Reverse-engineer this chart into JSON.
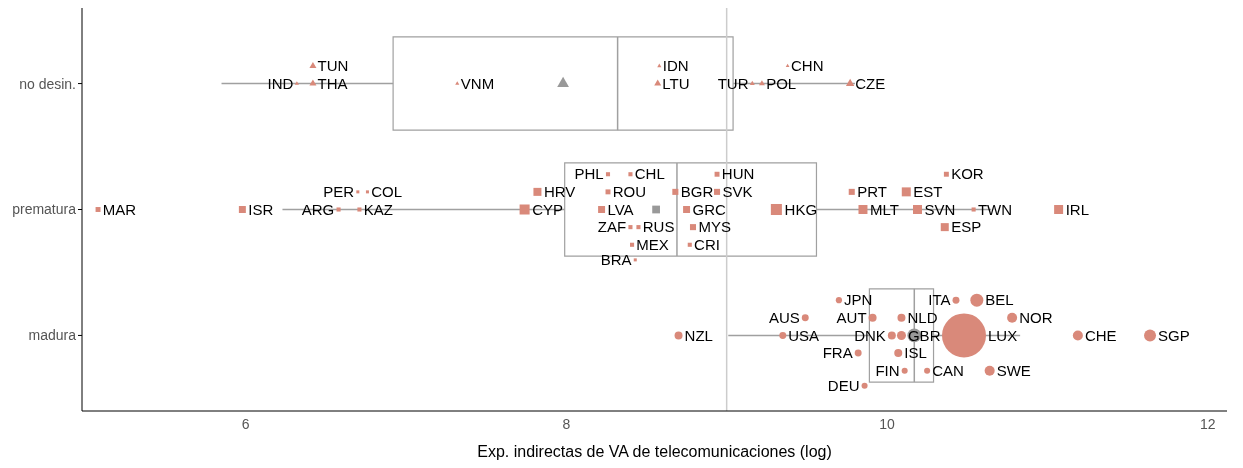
{
  "chart_data": {
    "type": "box",
    "orientation": "horizontal",
    "xlabel": "Exp. indirectas de VA de telecomunicaciones (log)",
    "xlim": [
      4.98,
      12.12
    ],
    "xticks": [
      6,
      8,
      10,
      12
    ],
    "categories": [
      "no desin.",
      "prematura",
      "madura"
    ],
    "grid": false,
    "legend": false,
    "ref_lines": [
      {
        "axis": "x",
        "value": 9.0,
        "color": "#cccccc"
      }
    ],
    "boxes": [
      {
        "low": 5.85,
        "q1": 6.92,
        "median": 8.32,
        "q3": 9.04,
        "high": 9.8,
        "mean": 7.98
      },
      {
        "low": 6.23,
        "q1": 7.99,
        "median": 8.69,
        "q3": 9.56,
        "high": 10.65,
        "mean": 8.56
      },
      {
        "low": 9.01,
        "q1": 9.89,
        "median": 10.17,
        "q3": 10.29,
        "high": 10.83,
        "mean": 10.17
      }
    ],
    "series": [
      {
        "type": "bubble",
        "marker": "triangle",
        "color": "#d9897a",
        "x": [
          "no desin.",
          "no desin.",
          "no desin.",
          "no desin.",
          "no desin.",
          "no desin.",
          "no desin.",
          "no desin.",
          "no desin.",
          "no desin."
        ],
        "values": [
          6.32,
          6.42,
          6.42,
          7.32,
          8.58,
          8.57,
          9.38,
          9.77,
          9.22,
          9.16
        ],
        "sizes": [
          0.005,
          0.014,
          0.014,
          0.005,
          0.005,
          0.014,
          0.004,
          0.02,
          0.01,
          0.007
        ],
        "value_labels": [
          "IND",
          "THA",
          "TUN",
          "VNM",
          "IDN",
          "LTU",
          "CHN",
          "CZE",
          "POL",
          "TUR"
        ]
      },
      {
        "type": "bubble",
        "marker": "square",
        "color": "#d9897a",
        "x": [
          "prematura",
          "prematura",
          "prematura",
          "prematura",
          "prematura",
          "prematura",
          "prematura",
          "prematura",
          "prematura",
          "prematura",
          "prematura",
          "prematura",
          "prematura",
          "prematura",
          "prematura",
          "prematura",
          "prematura",
          "prematura",
          "prematura",
          "prematura",
          "prematura",
          "prematura",
          "prematura",
          "prematura",
          "prematura",
          "prematura",
          "prematura",
          "prematura",
          "prematura",
          "prematura",
          "prematura"
        ],
        "values": [
          6.76,
          6.71,
          6.58,
          6.7,
          5.08,
          5.98,
          7.82,
          7.74,
          8.22,
          8.45,
          8.4,
          8.4,
          8.26,
          8.26,
          8.41,
          8.43,
          8.68,
          8.75,
          8.94,
          8.77,
          8.94,
          8.79,
          9.31,
          9.78,
          9.85,
          10.12,
          10.19,
          10.37,
          10.54,
          11.07,
          10.36
        ],
        "sizes": [
          0.006,
          0.011,
          0.011,
          0.006,
          0.016,
          0.032,
          0.042,
          0.066,
          0.032,
          0.011,
          0.011,
          0.011,
          0.016,
          0.011,
          0.011,
          0.006,
          0.024,
          0.032,
          0.016,
          0.011,
          0.024,
          0.024,
          0.08,
          0.024,
          0.053,
          0.053,
          0.053,
          0.016,
          0.011,
          0.053,
          0.042
        ],
        "value_labels": [
          "COL",
          "KAZ",
          "ARG",
          "PER",
          "MAR",
          "ISR",
          "HRV",
          "CYP",
          "LVA",
          "RUS",
          "ZAF",
          "CHL",
          "ROU",
          "PHL",
          "MEX",
          "BRA",
          "BGR",
          "GRC",
          "HUN",
          "CRI",
          "SVK",
          "MYS",
          "HKG",
          "PRT",
          "MLT",
          "EST",
          "SVN",
          "KOR",
          "TWN",
          "IRL",
          "ESP"
        ]
      },
      {
        "type": "bubble",
        "marker": "circle",
        "color": "#d9897a",
        "x": [
          "madura",
          "madura",
          "madura",
          "madura",
          "madura",
          "madura",
          "madura",
          "madura",
          "madura",
          "madura",
          "madura",
          "madura",
          "madura",
          "madura",
          "madura",
          "madura",
          "madura",
          "madura",
          "madura",
          "madura"
        ],
        "values": [
          9.35,
          9.49,
          9.7,
          9.82,
          10.03,
          10.09,
          10.43,
          10.56,
          11.19,
          10.25,
          10.09,
          9.91,
          10.07,
          10.11,
          9.86,
          10.48,
          10.78,
          10.64,
          11.64,
          8.7
        ],
        "sizes": [
          0.025,
          0.025,
          0.02,
          0.025,
          0.033,
          0.042,
          0.025,
          0.087,
          0.052,
          0.019,
          0.033,
          0.033,
          0.033,
          0.019,
          0.019,
          1,
          0.052,
          0.052,
          0.074,
          0.033
        ],
        "value_labels": [
          "USA",
          "AUS",
          "JPN",
          "FRA",
          "DNK",
          "GBR",
          "ITA",
          "BEL",
          "CHE",
          "CAN",
          "NLD",
          "AUT",
          "ISL",
          "FIN",
          "DEU",
          "LUX",
          "NOR",
          "SWE",
          "SGP",
          "NZL"
        ]
      }
    ]
  }
}
